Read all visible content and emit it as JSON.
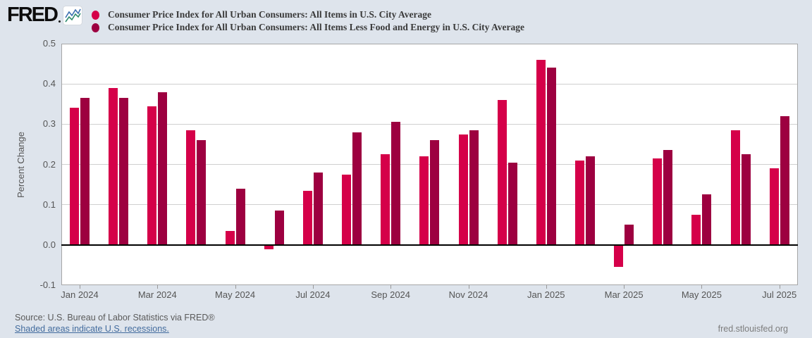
{
  "header": {
    "logo_text": "FRED",
    "legend": [
      {
        "label": "Consumer Price Index for All Urban Consumers: All Items in U.S. City Average",
        "color": "#d50049"
      },
      {
        "label": "Consumer Price Index for All Urban Consumers: All Items Less Food and Energy in U.S. City Average",
        "color": "#9d0040"
      }
    ]
  },
  "chart_data": {
    "type": "bar",
    "title": "",
    "xlabel": "",
    "ylabel": "Percent Change",
    "ylim": [
      -0.1,
      0.5
    ],
    "grid": "horizontal",
    "legend_position": "top",
    "ytick_labels": [
      "0.5",
      "0.4",
      "0.3",
      "0.2",
      "0.1",
      "0.0",
      "-0.1"
    ],
    "ytick_values": [
      0.5,
      0.4,
      0.3,
      0.2,
      0.1,
      0.0,
      -0.1
    ],
    "categories": [
      "Jan 2024",
      "Feb 2024",
      "Mar 2024",
      "Apr 2024",
      "May 2024",
      "Jun 2024",
      "Jul 2024",
      "Aug 2024",
      "Sep 2024",
      "Oct 2024",
      "Nov 2024",
      "Dec 2024",
      "Jan 2025",
      "Feb 2025",
      "Mar 2025",
      "Apr 2025",
      "May 2025",
      "Jun 2025",
      "Jul 2025"
    ],
    "x_labeled_every": 2,
    "series": [
      {
        "name": "Consumer Price Index for All Urban Consumers: All Items in U.S. City Average",
        "color": "#d50049",
        "values": [
          0.34,
          0.39,
          0.345,
          0.285,
          0.035,
          -0.01,
          0.135,
          0.175,
          0.225,
          0.22,
          0.275,
          0.36,
          0.46,
          0.21,
          -0.055,
          0.215,
          0.075,
          0.285,
          0.19
        ]
      },
      {
        "name": "Consumer Price Index for All Urban Consumers: All Items Less Food and Energy in U.S. City Average",
        "color": "#9d0040",
        "values": [
          0.365,
          0.365,
          0.38,
          0.26,
          0.14,
          0.085,
          0.18,
          0.28,
          0.305,
          0.26,
          0.285,
          0.205,
          0.44,
          0.22,
          0.05,
          0.235,
          0.125,
          0.225,
          0.32
        ]
      }
    ]
  },
  "footer": {
    "source": "Source: U.S. Bureau of Labor Statistics via FRED®",
    "recession_note": "Shaded areas indicate U.S. recessions.",
    "site": "fred.stlouisfed.org"
  }
}
